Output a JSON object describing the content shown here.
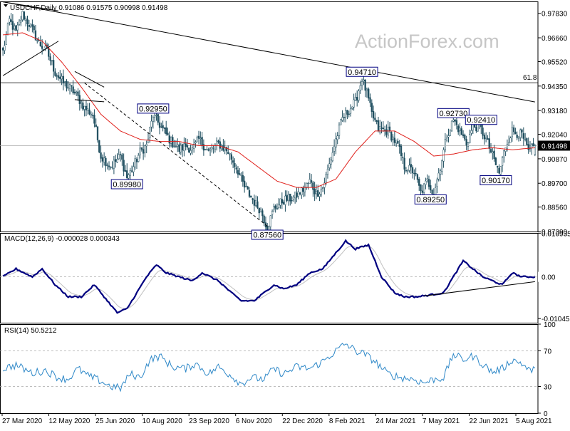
{
  "header": {
    "symbol_line": "USDCHF,Daily  0.91086 0.91575 0.90998 0.91498",
    "macd_label": "MACD(12,26,9) -0.000028 0.000343",
    "rsi_label": "RSI(14) 50.5212",
    "watermark": "ActionForex.com"
  },
  "colors": {
    "background": "#ffffff",
    "candles": "#1f4e5f",
    "ma": "#e0201b",
    "trend": "#000000",
    "macd": "#000080",
    "macd_signal": "#c0c0c0",
    "rsi": "#2e88c8",
    "label_border": "#000080"
  },
  "chart_data": [
    {
      "type": "candlestick",
      "title": "USDCHF,Daily",
      "ohlc_last": {
        "open": 0.91086,
        "high": 0.91575,
        "low": 0.90998,
        "close": 0.91498
      },
      "ylim": [
        0.8739,
        0.984
      ],
      "y_ticks": [
        "0.97830",
        "0.96660",
        "0.95520",
        "0.94350",
        "0.93180",
        "0.92040",
        "0.90870",
        "0.89700",
        "0.88560",
        "0.87390"
      ],
      "current_price": "0.91498",
      "fib_level": {
        "label": "61.8",
        "value": 0.9451
      },
      "x_ticks": [
        "27 Mar 2020",
        "12 May 2020",
        "25 Jun 2020",
        "10 Aug 2020",
        "23 Sep 2020",
        "6 Nov 2020",
        "22 Dec 2020",
        "8 Feb 2021",
        "24 Mar 2021",
        "7 May 2021",
        "22 Jun 2021",
        "5 Aug 2021"
      ],
      "anchors": [
        [
          0,
          0.96
        ],
        [
          4,
          0.975
        ],
        [
          8,
          0.969
        ],
        [
          12,
          0.978
        ],
        [
          17,
          0.972
        ],
        [
          22,
          0.964
        ],
        [
          27,
          0.96
        ],
        [
          32,
          0.95
        ],
        [
          37,
          0.945
        ],
        [
          42,
          0.942
        ],
        [
          46,
          0.938
        ],
        [
          50,
          0.933
        ],
        [
          55,
          0.93
        ],
        [
          60,
          0.91
        ],
        [
          66,
          0.905
        ],
        [
          72,
          0.91
        ],
        [
          76,
          0.8998
        ],
        [
          80,
          0.905
        ],
        [
          84,
          0.912
        ],
        [
          88,
          0.915
        ],
        [
          92,
          0.9295
        ],
        [
          96,
          0.925
        ],
        [
          102,
          0.918
        ],
        [
          108,
          0.913
        ],
        [
          112,
          0.915
        ],
        [
          116,
          0.913
        ],
        [
          120,
          0.918
        ],
        [
          126,
          0.912
        ],
        [
          132,
          0.916
        ],
        [
          138,
          0.912
        ],
        [
          144,
          0.903
        ],
        [
          148,
          0.895
        ],
        [
          154,
          0.888
        ],
        [
          158,
          0.884
        ],
        [
          162,
          0.8756
        ],
        [
          166,
          0.885
        ],
        [
          172,
          0.889
        ],
        [
          178,
          0.89
        ],
        [
          184,
          0.894
        ],
        [
          188,
          0.898
        ],
        [
          192,
          0.892
        ],
        [
          196,
          0.895
        ],
        [
          200,
          0.906
        ],
        [
          204,
          0.918
        ],
        [
          208,
          0.928
        ],
        [
          212,
          0.932
        ],
        [
          216,
          0.936
        ],
        [
          220,
          0.9471
        ],
        [
          223,
          0.94
        ],
        [
          226,
          0.93
        ],
        [
          230,
          0.923
        ],
        [
          236,
          0.922
        ],
        [
          242,
          0.915
        ],
        [
          246,
          0.905
        ],
        [
          252,
          0.9025
        ],
        [
          256,
          0.8925
        ],
        [
          260,
          0.898
        ],
        [
          264,
          0.8925
        ],
        [
          268,
          0.905
        ],
        [
          272,
          0.92
        ],
        [
          276,
          0.9273
        ],
        [
          280,
          0.922
        ],
        [
          284,
          0.916
        ],
        [
          288,
          0.924
        ],
        [
          292,
          0.9241
        ],
        [
          296,
          0.918
        ],
        [
          300,
          0.91
        ],
        [
          304,
          0.9017
        ],
        [
          308,
          0.915
        ],
        [
          312,
          0.922
        ],
        [
          318,
          0.92
        ],
        [
          322,
          0.912
        ],
        [
          326,
          0.915
        ]
      ],
      "ma_anchors": [
        [
          0,
          0.968
        ],
        [
          12,
          0.969
        ],
        [
          24,
          0.965
        ],
        [
          36,
          0.955
        ],
        [
          48,
          0.943
        ],
        [
          60,
          0.93
        ],
        [
          72,
          0.922
        ],
        [
          84,
          0.918
        ],
        [
          96,
          0.917
        ],
        [
          108,
          0.917
        ],
        [
          120,
          0.915
        ],
        [
          132,
          0.915
        ],
        [
          144,
          0.912
        ],
        [
          156,
          0.905
        ],
        [
          168,
          0.898
        ],
        [
          180,
          0.895
        ],
        [
          192,
          0.895
        ],
        [
          204,
          0.899
        ],
        [
          216,
          0.912
        ],
        [
          228,
          0.922
        ],
        [
          240,
          0.922
        ],
        [
          252,
          0.917
        ],
        [
          264,
          0.91
        ],
        [
          276,
          0.911
        ],
        [
          288,
          0.913
        ],
        [
          300,
          0.914
        ],
        [
          312,
          0.913
        ],
        [
          326,
          0.914
        ]
      ],
      "annotations": [
        {
          "text": "0.92950",
          "index": 92,
          "value": 0.9295,
          "position": "above"
        },
        {
          "text": "0.89980",
          "index": 76,
          "value": 0.8998,
          "position": "below"
        },
        {
          "text": "0.87560",
          "index": 162,
          "value": 0.8756,
          "position": "below"
        },
        {
          "text": "0.94710",
          "index": 220,
          "value": 0.9471,
          "position": "above"
        },
        {
          "text": "0.89250",
          "index": 262,
          "value": 0.8925,
          "position": "below"
        },
        {
          "text": "0.92730",
          "index": 276,
          "value": 0.9273,
          "position": "above"
        },
        {
          "text": "0.92410",
          "index": 293,
          "value": 0.9241,
          "position": "above"
        },
        {
          "text": "0.90170",
          "index": 302,
          "value": 0.9017,
          "position": "below"
        }
      ],
      "trendlines": [
        {
          "from": [
            0,
            0.9838
          ],
          "to": [
            326,
            0.9359
          ],
          "style": "solid"
        },
        {
          "from": [
            50,
            0.945
          ],
          "to": [
            162,
            0.8765
          ],
          "style": "dashed"
        },
        {
          "from": [
            0,
            0.9485
          ],
          "to": [
            34,
            0.965
          ],
          "style": "solid"
        },
        {
          "from": [
            0,
            0.9838
          ],
          "to": [
            34,
            0.9795
          ],
          "style": "solid"
        },
        {
          "from": [
            44,
            0.9505
          ],
          "to": [
            62,
            0.943
          ],
          "style": "solid"
        },
        {
          "from": [
            44,
            0.937
          ],
          "to": [
            62,
            0.936
          ],
          "style": "solid"
        }
      ]
    },
    {
      "type": "line",
      "title": "MACD(12,26,9)",
      "values_last": {
        "macd": -2.8e-05,
        "signal": 0.000343
      },
      "ylim": [
        -0.0115,
        0.011
      ],
      "y_ticks": [
        "0.010935",
        "0.00",
        "-0.010459"
      ],
      "current_value": "0.00",
      "anchors": [
        [
          0,
          0.0
        ],
        [
          8,
          0.002
        ],
        [
          18,
          0.0
        ],
        [
          24,
          0.002
        ],
        [
          32,
          -0.002
        ],
        [
          40,
          -0.005
        ],
        [
          48,
          -0.005
        ],
        [
          56,
          -0.002
        ],
        [
          64,
          -0.006
        ],
        [
          70,
          -0.009
        ],
        [
          76,
          -0.008
        ],
        [
          82,
          -0.004
        ],
        [
          88,
          0.0
        ],
        [
          94,
          0.003
        ],
        [
          100,
          0.001
        ],
        [
          108,
          0.0
        ],
        [
          116,
          -0.001
        ],
        [
          122,
          0.001
        ],
        [
          132,
          -0.001
        ],
        [
          140,
          -0.004
        ],
        [
          146,
          -0.006
        ],
        [
          154,
          -0.006
        ],
        [
          160,
          -0.004
        ],
        [
          166,
          -0.002
        ],
        [
          172,
          -0.003
        ],
        [
          180,
          -0.002
        ],
        [
          188,
          0.001
        ],
        [
          196,
          0.002
        ],
        [
          204,
          0.006
        ],
        [
          210,
          0.009
        ],
        [
          216,
          0.007
        ],
        [
          224,
          0.008
        ],
        [
          232,
          0.0
        ],
        [
          240,
          -0.004
        ],
        [
          246,
          -0.005
        ],
        [
          254,
          -0.005
        ],
        [
          262,
          -0.0045
        ],
        [
          270,
          -0.004
        ],
        [
          276,
          0.0
        ],
        [
          282,
          0.004
        ],
        [
          288,
          0.002
        ],
        [
          294,
          0.0
        ],
        [
          300,
          -0.001
        ],
        [
          306,
          -0.002
        ],
        [
          312,
          0.001
        ],
        [
          318,
          0.0
        ],
        [
          326,
          0.0
        ]
      ],
      "trendlines": [
        {
          "from": [
            258,
            -0.0048
          ],
          "to": [
            326,
            -0.0012
          ],
          "style": "solid"
        }
      ]
    },
    {
      "type": "line",
      "title": "RSI(14)",
      "value_last": 50.5212,
      "ylim": [
        0,
        100
      ],
      "y_ticks": [
        "100",
        "70",
        "30",
        "0"
      ],
      "levels": [
        30,
        70
      ],
      "anchors": [
        [
          0,
          50
        ],
        [
          8,
          54
        ],
        [
          18,
          45
        ],
        [
          26,
          48
        ],
        [
          34,
          40
        ],
        [
          40,
          38
        ],
        [
          46,
          50
        ],
        [
          52,
          42
        ],
        [
          60,
          36
        ],
        [
          66,
          30
        ],
        [
          72,
          28
        ],
        [
          78,
          44
        ],
        [
          84,
          40
        ],
        [
          90,
          60
        ],
        [
          96,
          64
        ],
        [
          104,
          52
        ],
        [
          112,
          50
        ],
        [
          118,
          56
        ],
        [
          126,
          44
        ],
        [
          132,
          52
        ],
        [
          140,
          42
        ],
        [
          146,
          33
        ],
        [
          152,
          40
        ],
        [
          160,
          38
        ],
        [
          166,
          50
        ],
        [
          172,
          44
        ],
        [
          180,
          52
        ],
        [
          188,
          50
        ],
        [
          196,
          58
        ],
        [
          204,
          70
        ],
        [
          210,
          78
        ],
        [
          216,
          70
        ],
        [
          222,
          66
        ],
        [
          228,
          58
        ],
        [
          236,
          44
        ],
        [
          244,
          40
        ],
        [
          252,
          38
        ],
        [
          258,
          34
        ],
        [
          264,
          38
        ],
        [
          270,
          40
        ],
        [
          276,
          66
        ],
        [
          282,
          60
        ],
        [
          288,
          64
        ],
        [
          294,
          55
        ],
        [
          300,
          46
        ],
        [
          306,
          50
        ],
        [
          312,
          60
        ],
        [
          318,
          56
        ],
        [
          322,
          48
        ],
        [
          326,
          50
        ]
      ]
    }
  ]
}
